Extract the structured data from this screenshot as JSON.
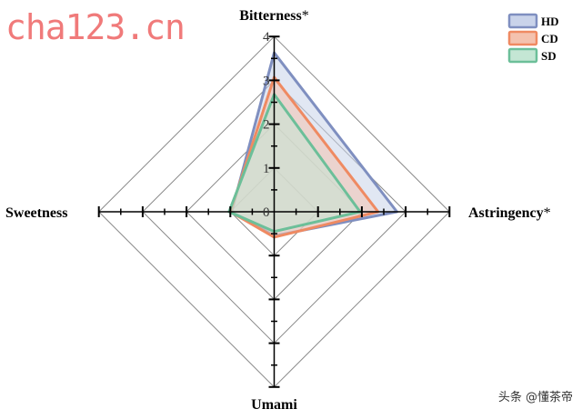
{
  "chart_data": {
    "type": "radar",
    "axes": [
      "Bitterness*",
      "Astringency*",
      "Umami",
      "Sweetness"
    ],
    "rlim": [
      0,
      4
    ],
    "ticks": [
      "0",
      "1",
      "2",
      "3",
      "4"
    ],
    "grid": true,
    "legend_position": "top-right",
    "series": [
      {
        "name": "HD",
        "values": [
          3.63,
          2.8,
          0.55,
          0.97
        ],
        "color": "#7f8fc0",
        "fill": "#c9d3ea"
      },
      {
        "name": "CD",
        "values": [
          3.07,
          2.37,
          0.58,
          1.0
        ],
        "color": "#ef8a62",
        "fill": "#f4c2ae"
      },
      {
        "name": "SD",
        "values": [
          2.68,
          1.96,
          0.45,
          1.03
        ],
        "color": "#6cbf99",
        "fill": "#c4e6d4"
      }
    ]
  },
  "watermarks": {
    "top_left": "cha123.cn",
    "bottom_right": "头条 @懂茶帝"
  }
}
